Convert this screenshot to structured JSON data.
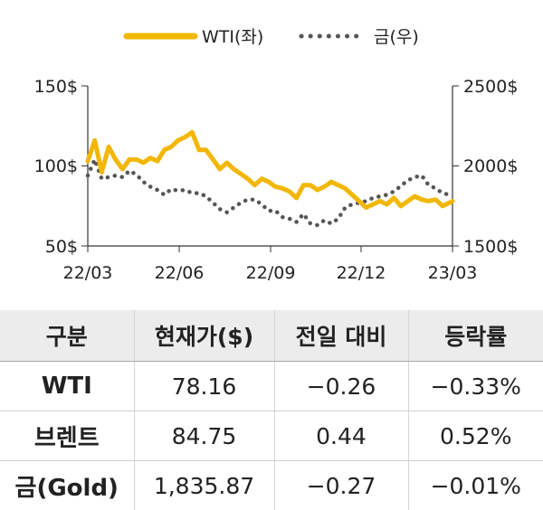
{
  "chart_data": {
    "type": "line",
    "legend": {
      "position": "top",
      "entries": [
        "WTI(좌)",
        "금(우)"
      ]
    },
    "x_ticks": [
      "22/03",
      "22/06",
      "22/09",
      "22/12",
      "23/03"
    ],
    "left_axis": {
      "ylim": [
        50,
        150
      ],
      "ticks": [
        "150$",
        "100$",
        "50$"
      ]
    },
    "right_axis": {
      "ylim": [
        1500,
        2500
      ],
      "ticks": [
        "2500$",
        "2000$",
        "1500$"
      ]
    },
    "grid": false,
    "series": [
      {
        "name": "WTI(좌)",
        "axis": "left",
        "color": "#f2b705",
        "style": "solid",
        "x": [
          "2022-03-01",
          "2022-03-08",
          "2022-03-15",
          "2022-03-22",
          "2022-03-29",
          "2022-04-05",
          "2022-04-12",
          "2022-04-19",
          "2022-04-26",
          "2022-05-03",
          "2022-05-10",
          "2022-05-17",
          "2022-05-24",
          "2022-05-31",
          "2022-06-07",
          "2022-06-14",
          "2022-06-21",
          "2022-06-28",
          "2022-07-05",
          "2022-07-12",
          "2022-07-19",
          "2022-07-26",
          "2022-08-02",
          "2022-08-09",
          "2022-08-16",
          "2022-08-23",
          "2022-08-30",
          "2022-09-06",
          "2022-09-13",
          "2022-09-20",
          "2022-09-27",
          "2022-10-04",
          "2022-10-11",
          "2022-10-18",
          "2022-10-25",
          "2022-11-01",
          "2022-11-08",
          "2022-11-15",
          "2022-11-22",
          "2022-11-29",
          "2022-12-06",
          "2022-12-13",
          "2022-12-20",
          "2022-12-27",
          "2023-01-03",
          "2023-01-10",
          "2023-01-17",
          "2023-01-24",
          "2023-01-31",
          "2023-02-07",
          "2023-02-14",
          "2023-02-21",
          "2023-02-28",
          "2023-03-03"
        ],
        "values": [
          103,
          116,
          96,
          112,
          104,
          98,
          104,
          104,
          102,
          105,
          103,
          110,
          112,
          116,
          118,
          121,
          110,
          110,
          104,
          98,
          102,
          98,
          95,
          92,
          88,
          92,
          90,
          87,
          86,
          84,
          80,
          88,
          88,
          85,
          87,
          90,
          88,
          86,
          82,
          78,
          74,
          76,
          78,
          76,
          80,
          75,
          78,
          81,
          79,
          78,
          79,
          75,
          77,
          78
        ]
      },
      {
        "name": "금(우)",
        "axis": "right",
        "color": "#555555",
        "style": "dotted",
        "x": [
          "2022-03-01",
          "2022-03-08",
          "2022-03-15",
          "2022-03-22",
          "2022-03-29",
          "2022-04-05",
          "2022-04-12",
          "2022-04-19",
          "2022-04-26",
          "2022-05-03",
          "2022-05-10",
          "2022-05-17",
          "2022-05-24",
          "2022-05-31",
          "2022-06-07",
          "2022-06-14",
          "2022-06-21",
          "2022-06-28",
          "2022-07-05",
          "2022-07-12",
          "2022-07-19",
          "2022-07-26",
          "2022-08-02",
          "2022-08-09",
          "2022-08-16",
          "2022-08-23",
          "2022-08-30",
          "2022-09-06",
          "2022-09-13",
          "2022-09-20",
          "2022-09-27",
          "2022-10-04",
          "2022-10-11",
          "2022-10-18",
          "2022-10-25",
          "2022-11-01",
          "2022-11-08",
          "2022-11-15",
          "2022-11-22",
          "2022-11-29",
          "2022-12-06",
          "2022-12-13",
          "2022-12-20",
          "2022-12-27",
          "2023-01-03",
          "2023-01-10",
          "2023-01-17",
          "2023-01-24",
          "2023-01-31",
          "2023-02-07",
          "2023-02-14",
          "2023-02-21",
          "2023-02-28",
          "2023-03-03"
        ],
        "values": [
          1940,
          2040,
          1920,
          1930,
          1940,
          1930,
          1970,
          1945,
          1900,
          1870,
          1850,
          1820,
          1855,
          1845,
          1850,
          1830,
          1830,
          1810,
          1770,
          1730,
          1710,
          1740,
          1770,
          1790,
          1790,
          1760,
          1720,
          1720,
          1680,
          1670,
          1650,
          1700,
          1640,
          1630,
          1660,
          1640,
          1670,
          1740,
          1760,
          1770,
          1780,
          1800,
          1810,
          1820,
          1840,
          1875,
          1910,
          1930,
          1940,
          1880,
          1860,
          1830,
          1820,
          1810
        ]
      }
    ]
  },
  "table": {
    "headers": [
      "구분",
      "현재가($)",
      "전일 대비",
      "등락률"
    ],
    "rows": [
      [
        "WTI",
        "78.16",
        "−0.26",
        "−0.33%"
      ],
      [
        "브렌트",
        "84.75",
        "0.44",
        "0.52%"
      ],
      [
        "금(Gold)",
        "1,835.87",
        "−0.27",
        "−0.01%"
      ]
    ]
  }
}
